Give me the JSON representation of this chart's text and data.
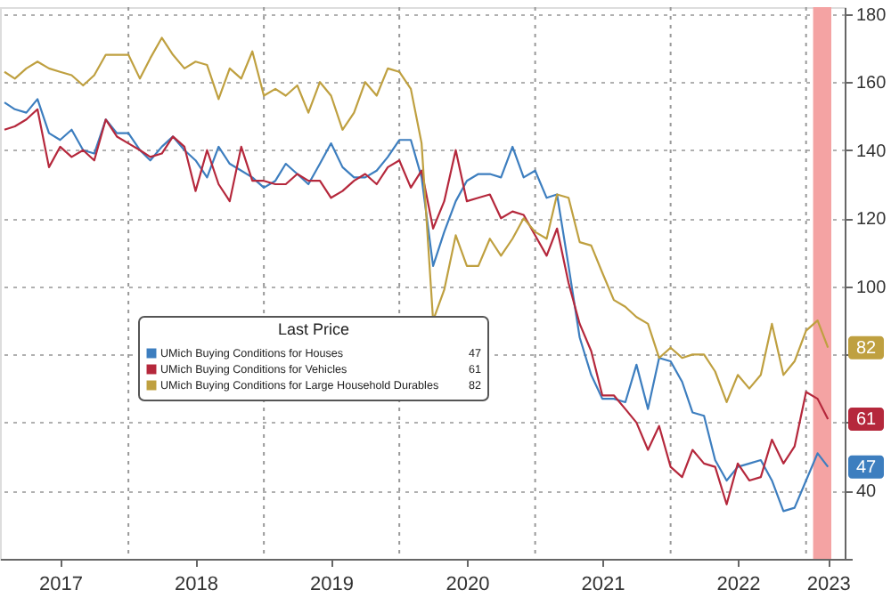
{
  "chart_data": {
    "type": "line",
    "x": [
      "2017-02",
      "2017-03",
      "2017-04",
      "2017-05",
      "2017-06",
      "2017-07",
      "2017-08",
      "2017-09",
      "2017-10",
      "2017-11",
      "2017-12",
      "2018-01",
      "2018-02",
      "2018-03",
      "2018-04",
      "2018-05",
      "2018-06",
      "2018-07",
      "2018-08",
      "2018-09",
      "2018-10",
      "2018-11",
      "2018-12",
      "2019-01",
      "2019-02",
      "2019-03",
      "2019-04",
      "2019-05",
      "2019-06",
      "2019-07",
      "2019-08",
      "2019-09",
      "2019-10",
      "2019-11",
      "2019-12",
      "2020-01",
      "2020-02",
      "2020-03",
      "2020-04",
      "2020-05",
      "2020-06",
      "2020-07",
      "2020-08",
      "2020-09",
      "2020-10",
      "2020-11",
      "2020-12",
      "2021-01",
      "2021-02",
      "2021-03",
      "2021-04",
      "2021-05",
      "2021-06",
      "2021-07",
      "2021-08",
      "2021-09",
      "2021-10",
      "2021-11",
      "2021-12",
      "2022-01",
      "2022-02",
      "2022-03",
      "2022-04",
      "2022-05",
      "2022-06",
      "2022-07",
      "2022-08",
      "2022-09",
      "2022-10",
      "2022-11",
      "2022-12",
      "2023-01",
      "2023-02",
      "2023-03"
    ],
    "series": [
      {
        "name": "UMich Buying Conditions for Houses",
        "color": "#3d7ebf",
        "values": [
          154,
          152,
          151,
          155,
          145,
          143,
          146,
          140,
          139,
          149,
          145,
          145,
          140,
          137,
          141,
          144,
          140,
          137,
          132,
          141,
          136,
          134,
          132,
          129,
          131,
          136,
          133,
          130,
          136,
          142,
          135,
          132,
          132,
          134,
          138,
          143,
          143,
          132,
          106,
          116,
          125,
          131,
          133,
          133,
          132,
          141,
          132,
          134,
          126,
          127,
          106,
          85,
          74,
          67,
          67,
          66,
          77,
          64,
          79,
          78,
          72,
          63,
          62,
          49,
          43,
          47,
          48,
          49,
          43,
          34,
          35,
          43,
          51,
          47
        ],
        "value_labels": [
          null,
          null,
          null,
          null,
          null,
          null,
          null,
          null,
          null,
          null,
          null,
          null,
          null,
          null,
          null,
          null,
          null,
          null,
          null,
          null,
          null,
          null,
          null,
          null,
          null,
          null,
          null,
          null,
          null,
          null,
          null,
          null,
          null,
          null,
          null,
          null,
          null,
          null,
          null,
          null,
          null,
          null,
          null,
          null,
          null,
          null,
          null,
          null,
          null,
          null,
          null,
          null,
          null,
          null,
          null,
          null,
          null,
          null,
          null,
          null,
          null,
          null,
          null,
          null,
          null,
          null,
          null,
          null,
          null,
          null,
          null,
          null,
          null,
          "47"
        ]
      },
      {
        "name": "UMich Buying Conditions for Vehicles",
        "color": "#b5283c",
        "values": [
          146,
          147,
          149,
          152,
          135,
          141,
          138,
          140,
          137,
          149,
          144,
          142,
          140,
          138,
          139,
          144,
          141,
          128,
          140,
          130,
          125,
          141,
          131,
          131,
          130,
          130,
          133,
          131,
          131,
          126,
          128,
          131,
          133,
          130,
          135,
          137,
          129,
          134,
          117,
          125,
          140,
          125,
          126,
          127,
          120,
          122,
          121,
          115,
          109,
          117,
          101,
          89,
          81,
          68,
          68,
          64,
          60,
          52,
          59,
          47,
          44,
          52,
          48,
          47,
          36,
          48,
          43,
          44,
          55,
          48,
          53,
          69,
          67,
          61
        ],
        "value_labels": [
          null,
          null,
          null,
          null,
          null,
          null,
          null,
          null,
          null,
          null,
          null,
          null,
          null,
          null,
          null,
          null,
          null,
          null,
          null,
          null,
          null,
          null,
          null,
          null,
          null,
          null,
          null,
          null,
          null,
          null,
          null,
          null,
          null,
          null,
          null,
          null,
          null,
          null,
          null,
          null,
          null,
          null,
          null,
          null,
          null,
          null,
          null,
          null,
          null,
          null,
          null,
          null,
          null,
          null,
          null,
          null,
          null,
          null,
          null,
          null,
          null,
          null,
          null,
          null,
          null,
          null,
          null,
          null,
          null,
          null,
          null,
          null,
          null,
          "61"
        ]
      },
      {
        "name": "UMich Buying Conditions for Large Household Durables",
        "color": "#bfa040",
        "values": [
          163,
          161,
          164,
          166,
          164,
          163,
          162,
          159,
          162,
          168,
          168,
          168,
          161,
          167,
          173,
          168,
          164,
          166,
          165,
          155,
          164,
          161,
          169,
          156,
          158,
          156,
          159,
          151,
          160,
          156,
          146,
          151,
          160,
          156,
          164,
          163,
          158,
          142,
          90,
          99,
          115,
          106,
          106,
          114,
          109,
          114,
          120,
          116,
          114,
          127,
          126,
          113,
          112,
          104,
          96,
          94,
          91,
          89,
          79,
          82,
          79,
          80,
          80,
          75,
          66,
          74,
          70,
          74,
          89,
          74,
          78,
          87,
          90,
          82
        ],
        "value_labels": [
          null,
          null,
          null,
          null,
          null,
          null,
          null,
          null,
          null,
          null,
          null,
          null,
          null,
          null,
          null,
          null,
          null,
          null,
          null,
          null,
          null,
          null,
          null,
          null,
          null,
          null,
          null,
          null,
          null,
          null,
          null,
          null,
          null,
          null,
          null,
          null,
          null,
          null,
          null,
          null,
          null,
          null,
          null,
          null,
          null,
          null,
          null,
          null,
          null,
          null,
          null,
          null,
          null,
          null,
          null,
          null,
          null,
          null,
          null,
          null,
          null,
          null,
          null,
          null,
          null,
          null,
          null,
          null,
          null,
          null,
          null,
          null,
          null,
          "82"
        ]
      }
    ],
    "xlim": [
      "2017-01-20",
      "2023-04-15"
    ],
    "xticks": [
      {
        "value": "2017-07-01",
        "label": "2017"
      },
      {
        "value": "2018-01-01",
        "label": null
      },
      {
        "value": "2018-07-01",
        "label": "2018"
      },
      {
        "value": "2019-01-01",
        "label": null
      },
      {
        "value": "2019-07-01",
        "label": "2019"
      },
      {
        "value": "2020-01-01",
        "label": null
      },
      {
        "value": "2020-07-01",
        "label": "2020"
      },
      {
        "value": "2021-01-01",
        "label": null
      },
      {
        "value": "2021-07-01",
        "label": "2021"
      },
      {
        "value": "2022-01-01",
        "label": null
      },
      {
        "value": "2022-07-01",
        "label": "2022"
      },
      {
        "value": "2023-01-01",
        "label": null
      },
      {
        "value": "2023-03-01",
        "label": "2023"
      }
    ],
    "ylim": [
      20,
      182
    ],
    "yticks": [
      {
        "value": 20,
        "label": null
      },
      40,
      {
        "value": 60,
        "label": null
      },
      {
        "value": 80,
        "label": null
      },
      100,
      120,
      140,
      160,
      180
    ],
    "bands": [
      {
        "axis": "x",
        "from": "2023-01-20",
        "to": "2023-03-10",
        "color": "#f4a3a3"
      }
    ],
    "legend_title": "Last Price",
    "legend": "left",
    "grid": true,
    "marker": "none",
    "line_style": "solid"
  }
}
